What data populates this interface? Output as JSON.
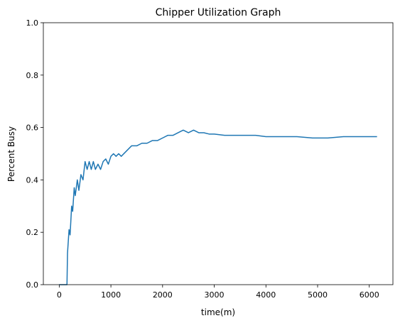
{
  "chart_data": {
    "type": "line",
    "title": "Chipper Utilization Graph",
    "xlabel": "time(m)",
    "ylabel": "Percent Busy",
    "color": "#1f77b4",
    "x": [
      0,
      150,
      160,
      190,
      210,
      240,
      260,
      290,
      310,
      350,
      380,
      420,
      460,
      500,
      540,
      580,
      620,
      660,
      700,
      750,
      800,
      850,
      900,
      950,
      1000,
      1050,
      1100,
      1150,
      1200,
      1300,
      1400,
      1500,
      1600,
      1700,
      1800,
      1900,
      2000,
      2100,
      2200,
      2300,
      2400,
      2500,
      2600,
      2700,
      2800,
      2900,
      3000,
      3200,
      3400,
      3600,
      3800,
      4000,
      4300,
      4600,
      4900,
      5200,
      5500,
      5800,
      6150
    ],
    "values": [
      0,
      0,
      0.12,
      0.21,
      0.19,
      0.3,
      0.28,
      0.37,
      0.34,
      0.4,
      0.36,
      0.42,
      0.4,
      0.47,
      0.44,
      0.47,
      0.44,
      0.47,
      0.44,
      0.46,
      0.44,
      0.47,
      0.48,
      0.46,
      0.49,
      0.5,
      0.49,
      0.5,
      0.49,
      0.51,
      0.53,
      0.53,
      0.54,
      0.54,
      0.55,
      0.55,
      0.56,
      0.57,
      0.57,
      0.58,
      0.59,
      0.58,
      0.59,
      0.58,
      0.58,
      0.575,
      0.575,
      0.57,
      0.57,
      0.57,
      0.57,
      0.565,
      0.565,
      0.565,
      0.56,
      0.56,
      0.565,
      0.565,
      0.565
    ],
    "xlim": [
      -307.5,
      6457.5
    ],
    "ylim": [
      0,
      1
    ],
    "xticks": [
      0,
      1000,
      2000,
      3000,
      4000,
      5000,
      6000
    ],
    "yticks": [
      {
        "value": 0,
        "label": "0.0"
      },
      {
        "value": 0.2,
        "label": "0.2"
      },
      {
        "value": 0.4,
        "label": "0.4"
      },
      {
        "value": 0.6,
        "label": "0.6"
      },
      {
        "value": 0.8,
        "label": "0.8"
      },
      {
        "value": 1,
        "label": "1.0"
      }
    ],
    "grid": false
  }
}
